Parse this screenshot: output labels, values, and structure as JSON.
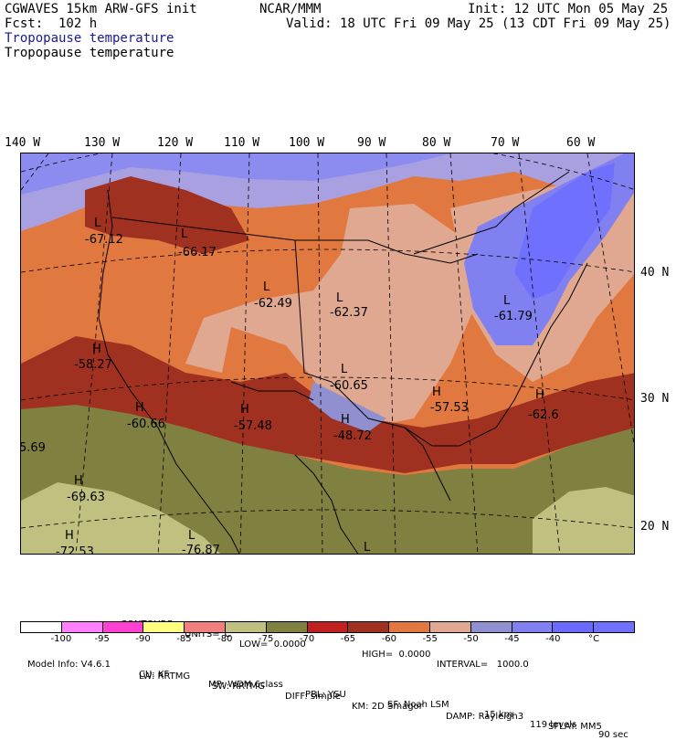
{
  "header": {
    "model_line": "CGWAVES 15km ARW-GFS init",
    "org": "NCAR/MMM",
    "init": "Init: 12 UTC Mon 05 May 25",
    "fcst": "Fcst:  102 h",
    "valid": "Valid: 18 UTC Fri 09 May 25 (13 CDT Fri 09 May 25)",
    "field_title_1": "Tropopause temperature",
    "field_title_2": "Tropopause temperature"
  },
  "map": {
    "lon_labels": [
      "140 W",
      "130 W",
      "120 W",
      "110 W",
      "100 W",
      "90 W",
      "80 W",
      "70 W",
      "60 W"
    ],
    "lat_labels": [
      "40 N",
      "30 N",
      "20 N"
    ],
    "extrema": [
      {
        "type": "L",
        "value": "-67.12"
      },
      {
        "type": "L",
        "value": "-66.17"
      },
      {
        "type": "L",
        "value": "-62.49"
      },
      {
        "type": "L",
        "value": "-62.37"
      },
      {
        "type": "L",
        "value": "-61.79"
      },
      {
        "type": "H",
        "value": "-58.27"
      },
      {
        "type": "L",
        "value": "-60.65"
      },
      {
        "type": "H",
        "value": "-60.66"
      },
      {
        "type": "H",
        "value": "-57.48"
      },
      {
        "type": "H",
        "value": "-57.53"
      },
      {
        "type": "H",
        "value": "-62.6"
      },
      {
        "type": "H",
        "value": "-48.72"
      },
      {
        "type": "H",
        "value": "-69.63"
      },
      {
        "type": "H",
        "value": "-72.53"
      },
      {
        "type": "L",
        "value": "-76.87"
      },
      {
        "type": "",
        "value": "5.69"
      },
      {
        "type": "L",
        "value": ""
      }
    ]
  },
  "contours": {
    "label": "CONTOURS:",
    "units": "UNITS=°C",
    "low": "LOW=  0.0000",
    "high": "HIGH=  0.0000",
    "interval": "INTERVAL=   1000.0"
  },
  "colorbar": {
    "colors": [
      "#ffffff",
      "#ff80ff",
      "#ff40d0",
      "#ffff80",
      "#f08080",
      "#c0c080",
      "#808040",
      "#c02020",
      "#a03020",
      "#e07840",
      "#e0a890",
      "#9090d0",
      "#8080f0",
      "#6a6aff",
      "#7070ff"
    ],
    "labels": [
      "-100",
      "-95",
      "-90",
      "-85",
      "-80",
      "-75",
      "-70",
      "-65",
      "-60",
      "-55",
      "-50",
      "-45",
      "-40",
      "°C"
    ]
  },
  "footer": {
    "line1": [
      "Model Info: V4.6.1",
      "CU: KF",
      "MP: WDM 6class",
      "PBL: YSU",
      "SF: Noah LSM",
      "15 km",
      "119 levels",
      "90 sec"
    ],
    "line2": [
      "LW: RRTMG",
      "SW: RRTMG",
      "DIFF: simple",
      "KM: 2D Smagor",
      "DAMP: Rayleigh3",
      "SFLAY: MM5"
    ]
  }
}
